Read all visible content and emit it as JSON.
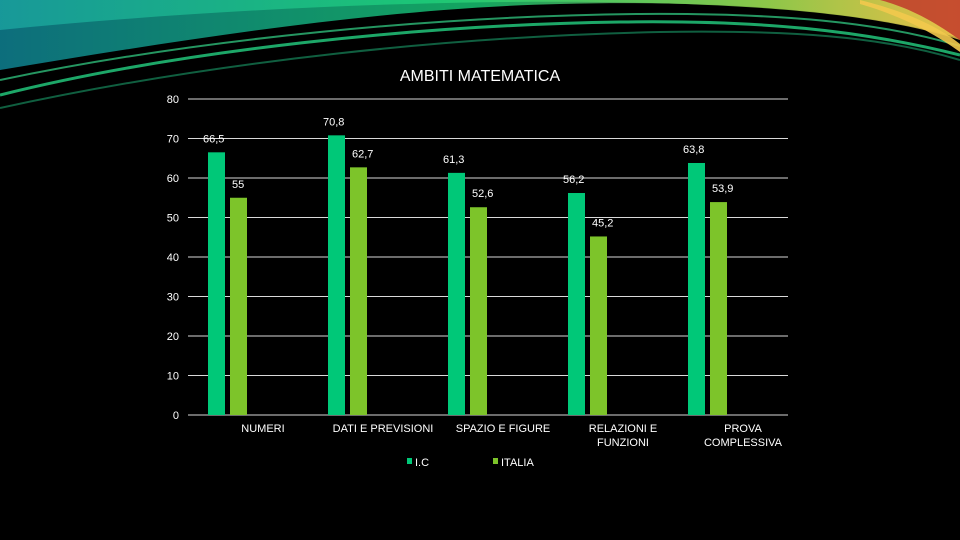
{
  "chart_data": {
    "type": "bar",
    "title": "AMBITI MATEMATICA",
    "categories": [
      [
        "NUMERI"
      ],
      [
        "DATI E PREVISIONI"
      ],
      [
        "SPAZIO E FIGURE"
      ],
      [
        "RELAZIONI E",
        "FUNZIONI"
      ],
      [
        "PROVA",
        "COMPLESSIVA"
      ]
    ],
    "series": [
      {
        "name": "I.C",
        "color": "#00c878",
        "values": [
          66.5,
          70.8,
          61.3,
          56.2,
          63.8
        ],
        "labels": [
          "66,5",
          "70,8",
          "61,3",
          "56,2",
          "63,8"
        ]
      },
      {
        "name": "ITALIA",
        "color": "#7dc42a",
        "values": [
          55,
          62.7,
          52.6,
          45.2,
          53.9
        ],
        "labels": [
          "55",
          "62,7",
          "52,6",
          "45,2",
          "53,9"
        ]
      }
    ],
    "ylim": [
      0,
      80
    ],
    "yticks": [
      0,
      10,
      20,
      30,
      40,
      50,
      60,
      70,
      80
    ],
    "grid": true,
    "legend_position": "bottom"
  }
}
